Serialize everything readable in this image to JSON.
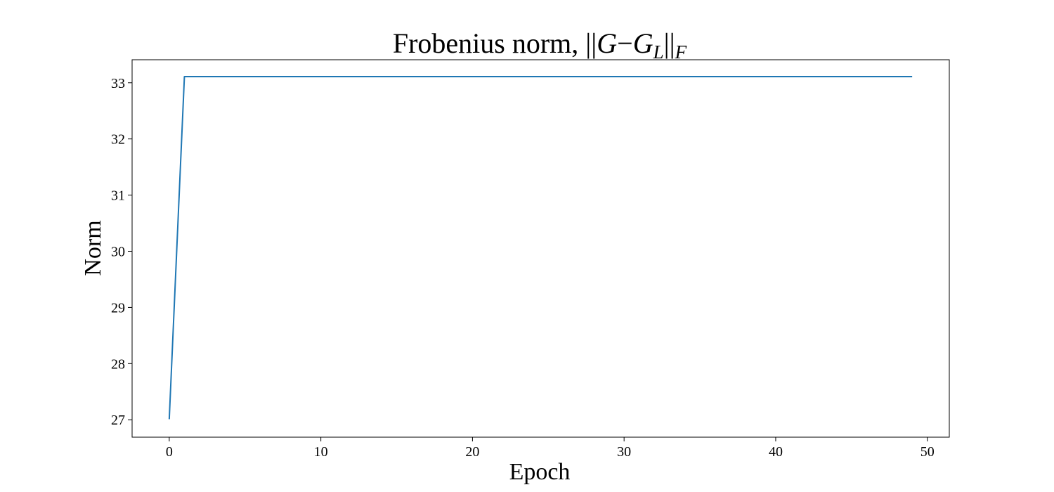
{
  "chart_data": {
    "type": "line",
    "title": {
      "prefix": "Frobenius norm, ",
      "bar_left": "||",
      "var_g": "G",
      "minus": "−",
      "var_g2": "G",
      "sub_l": "L",
      "bar_right": "||",
      "sub_f": "F"
    },
    "xlabel": "Epoch",
    "ylabel": "Norm",
    "xlim": [
      -2.45,
      51.45
    ],
    "ylim": [
      26.69,
      33.41
    ],
    "xticks": [
      0,
      10,
      20,
      30,
      40,
      50
    ],
    "yticks": [
      27,
      28,
      29,
      30,
      31,
      32,
      33
    ],
    "grid": false,
    "series": [
      {
        "color": "#1f77b4",
        "x": [
          0,
          1,
          2,
          3,
          4,
          5,
          6,
          7,
          8,
          9,
          10,
          11,
          12,
          13,
          14,
          15,
          16,
          17,
          18,
          19,
          20,
          21,
          22,
          23,
          24,
          25,
          26,
          27,
          28,
          29,
          30,
          31,
          32,
          33,
          34,
          35,
          36,
          37,
          38,
          39,
          40,
          41,
          42,
          43,
          44,
          45,
          46,
          47,
          48,
          49
        ],
        "y": [
          27.01,
          33.11,
          33.11,
          33.11,
          33.11,
          33.11,
          33.11,
          33.11,
          33.11,
          33.11,
          33.11,
          33.11,
          33.11,
          33.11,
          33.11,
          33.11,
          33.11,
          33.11,
          33.11,
          33.11,
          33.11,
          33.11,
          33.11,
          33.11,
          33.11,
          33.11,
          33.11,
          33.11,
          33.11,
          33.11,
          33.11,
          33.11,
          33.11,
          33.11,
          33.11,
          33.11,
          33.11,
          33.11,
          33.11,
          33.11,
          33.11,
          33.11,
          33.11,
          33.11,
          33.11,
          33.11,
          33.11,
          33.11,
          33.11,
          33.11
        ]
      }
    ]
  }
}
